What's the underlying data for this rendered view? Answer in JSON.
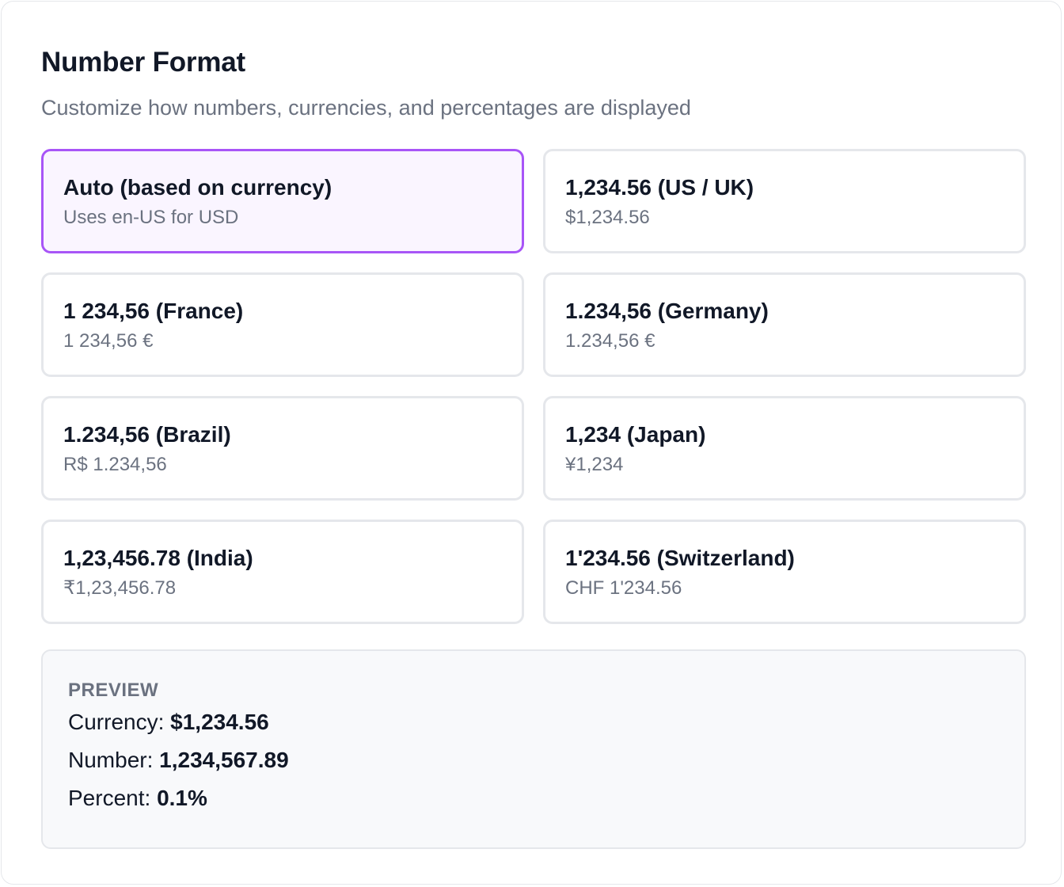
{
  "header": {
    "title": "Number Format",
    "subtitle": "Customize how numbers, currencies, and percentages are displayed"
  },
  "options": [
    {
      "label": "Auto (based on currency)",
      "example": "Uses en-US for USD",
      "selected": true
    },
    {
      "label": "1,234.56 (US / UK)",
      "example": "$1,234.56",
      "selected": false
    },
    {
      "label": "1 234,56 (France)",
      "example": "1 234,56 €",
      "selected": false
    },
    {
      "label": "1.234,56 (Germany)",
      "example": "1.234,56 €",
      "selected": false
    },
    {
      "label": "1.234,56 (Brazil)",
      "example": "R$ 1.234,56",
      "selected": false
    },
    {
      "label": "1,234 (Japan)",
      "example": "¥1,234",
      "selected": false
    },
    {
      "label": "1,23,456.78 (India)",
      "example": "₹1,23,456.78",
      "selected": false
    },
    {
      "label": "1'234.56 (Switzerland)",
      "example": "CHF 1'234.56",
      "selected": false
    }
  ],
  "preview": {
    "heading": "PREVIEW",
    "currency_label": "Currency:",
    "currency_value": "$1,234.56",
    "number_label": "Number:",
    "number_value": "1,234,567.89",
    "percent_label": "Percent:",
    "percent_value": "0.1%"
  },
  "colors": {
    "selected_border": "#a855f7",
    "selected_background": "#faf5ff",
    "card_border": "#e5e7eb",
    "muted_text": "#6b7280",
    "primary_text": "#111827",
    "preview_background": "#f8f9fb"
  }
}
